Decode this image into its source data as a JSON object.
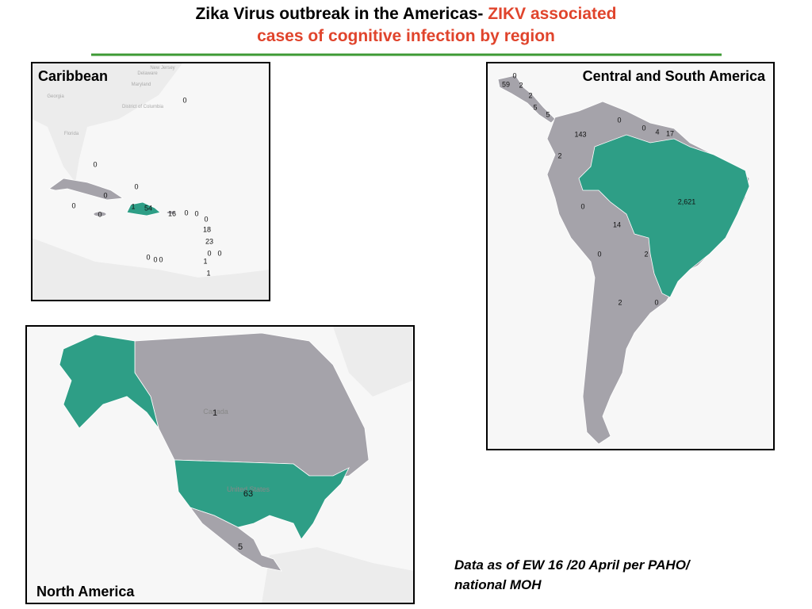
{
  "header": {
    "title_black": "Zika Virus outbreak in the Americas-",
    "title_red": "ZIKV associated",
    "subtitle_red": "cases of cognitive infection by region"
  },
  "panels": [
    {
      "title": "Caribbean",
      "basemap_labels": [
        "New Jersey",
        "Delaware",
        "Maryland",
        "District of Columbia",
        "Georgia",
        "Florida"
      ],
      "case_labels": [
        "0",
        "0",
        "0",
        "0",
        "0",
        "0",
        "1",
        "54",
        "16",
        "0",
        "0",
        "0",
        "18",
        "23",
        "0",
        "0",
        "1",
        "1",
        "0",
        "0",
        "0"
      ]
    },
    {
      "title": "Central and South America",
      "case_labels": [
        "0",
        "59",
        "2",
        "2",
        "5",
        "5",
        "0",
        "0",
        "4",
        "17",
        "143",
        "2",
        "2,621",
        "0",
        "14",
        "0",
        "2",
        "2",
        "0"
      ]
    },
    {
      "title": "North America",
      "basemap_labels": [
        "Canada",
        "United States"
      ],
      "case_labels": [
        "1",
        "63",
        "5"
      ]
    }
  ],
  "footnote": [
    "Data as of EW 16 /20 April per PAHO/",
    "national MOH"
  ]
}
